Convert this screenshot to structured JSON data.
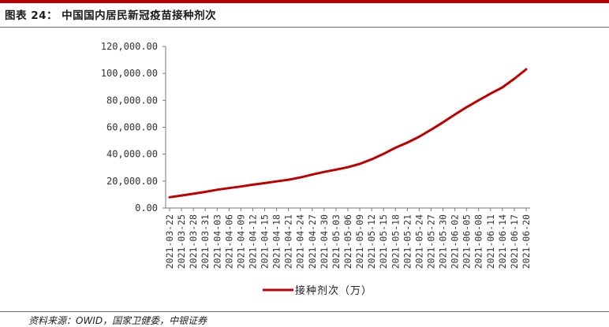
{
  "header": {
    "title": "图表 24：  中国国内居民新冠疫苗接种剂次",
    "accent_color": "#b30000"
  },
  "source": "资料来源：OWID，国家卫健委，中银证券",
  "chart_data": {
    "type": "line",
    "title": "",
    "xlabel": "",
    "ylabel": "",
    "ylim": [
      0,
      120000
    ],
    "y_ticks": [
      "0.00",
      "20,000.00",
      "40,000.00",
      "60,000.00",
      "80,000.00",
      "100,000.00",
      "120,000.00"
    ],
    "y_tick_values": [
      0,
      20000,
      40000,
      60000,
      80000,
      100000,
      120000
    ],
    "grid": false,
    "legend_position": "bottom",
    "x_tick_labels": [
      "2021-03-22",
      "2021-03-25",
      "2021-03-28",
      "2021-03-31",
      "2021-04-03",
      "2021-04-06",
      "2021-04-09",
      "2021-04-12",
      "2021-04-15",
      "2021-04-18",
      "2021-04-21",
      "2021-04-24",
      "2021-04-27",
      "2021-04-30",
      "2021-05-03",
      "2021-05-06",
      "2021-05-09",
      "2021-05-12",
      "2021-05-15",
      "2021-05-18",
      "2021-05-21",
      "2021-05-24",
      "2021-05-27",
      "2021-05-30",
      "2021-06-02",
      "2021-06-05",
      "2021-06-08",
      "2021-06-11",
      "2021-06-14",
      "2021-06-17",
      "2021-06-20"
    ],
    "x": [
      "2021-03-22",
      "2021-03-25",
      "2021-03-28",
      "2021-03-31",
      "2021-04-03",
      "2021-04-06",
      "2021-04-09",
      "2021-04-12",
      "2021-04-15",
      "2021-04-18",
      "2021-04-21",
      "2021-04-24",
      "2021-04-27",
      "2021-04-30",
      "2021-05-03",
      "2021-05-06",
      "2021-05-09",
      "2021-05-12",
      "2021-05-15",
      "2021-05-18",
      "2021-05-21",
      "2021-05-24",
      "2021-05-27",
      "2021-05-30",
      "2021-06-02",
      "2021-06-05",
      "2021-06-08",
      "2021-06-11",
      "2021-06-14",
      "2021-06-17",
      "2021-06-20"
    ],
    "series": [
      {
        "name": "接种剂次（万）",
        "color": "#c00000",
        "values": [
          8000,
          9300,
          10600,
          12000,
          13600,
          14800,
          16000,
          17300,
          18500,
          19800,
          21000,
          22700,
          24800,
          26800,
          28500,
          30300,
          32800,
          36200,
          40200,
          44800,
          48600,
          53000,
          58200,
          63600,
          69400,
          75000,
          80000,
          85000,
          89600,
          96000,
          103000
        ]
      }
    ]
  }
}
